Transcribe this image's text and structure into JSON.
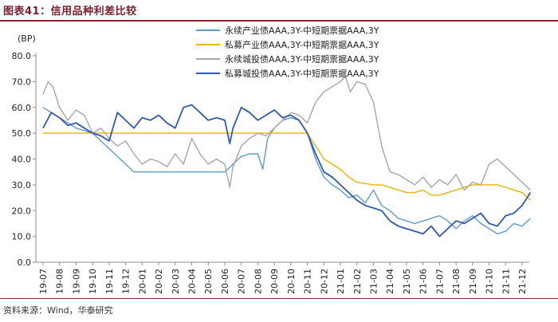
{
  "header": {
    "title": "图表41：信用品种利差比较"
  },
  "footer": {
    "source": "资料来源：Wind，华泰研究"
  },
  "chart_data": {
    "type": "line",
    "title": "信用品种利差比较",
    "ylabel": "(BP)",
    "ylim": [
      0,
      80
    ],
    "yticks": [
      "0.0",
      "10.0",
      "20.0",
      "30.0",
      "40.0",
      "50.0",
      "60.0",
      "70.0",
      "80.0"
    ],
    "grid": false,
    "legend_position": "top-right",
    "categories": [
      "19-07",
      "19-08",
      "19-09",
      "19-10",
      "19-11",
      "19-12",
      "20-01",
      "20-02",
      "20-03",
      "20-04",
      "20-05",
      "20-06",
      "20-07",
      "20-08",
      "20-09",
      "20-10",
      "20-11",
      "20-12",
      "21-01",
      "21-02",
      "21-03",
      "21-04",
      "21-05",
      "21-06",
      "21-07",
      "21-08",
      "21-09",
      "21-10",
      "21-11",
      "21-12"
    ],
    "series": [
      {
        "name": "永续产业债AAA,3Y-中短期票据AAA,3Y",
        "color": "#5b9bd5",
        "x": [
          0,
          0.5,
          1,
          1.5,
          2,
          2.5,
          3,
          3.5,
          4,
          4.5,
          5,
          5.5,
          6,
          6.5,
          7,
          7.5,
          8,
          8.5,
          9,
          9.5,
          10,
          10.5,
          11,
          11.5,
          12,
          12.5,
          13,
          13.3,
          13.6,
          14,
          14.5,
          15,
          15.5,
          16,
          16.5,
          17,
          17.5,
          18,
          18.5,
          19,
          19.5,
          20,
          20.5,
          21,
          21.5,
          22,
          22.5,
          23,
          23.5,
          24,
          24.5,
          25,
          25.5,
          26,
          26.5,
          27,
          27.5,
          28,
          28.5,
          29,
          29.5
        ],
        "values": [
          60,
          58,
          56,
          54,
          52,
          51,
          50,
          47,
          44,
          41,
          38,
          35,
          35,
          35,
          35,
          35,
          35,
          35,
          35,
          35,
          35,
          35,
          35,
          38,
          41,
          42,
          42,
          36,
          48,
          52,
          55,
          56,
          55,
          50,
          40,
          33,
          30,
          28,
          25,
          26,
          23,
          28,
          22,
          20,
          17,
          16,
          15,
          16,
          17,
          18,
          16,
          13,
          16,
          18,
          15,
          13,
          11,
          12,
          15,
          14,
          17
        ]
      },
      {
        "name": "私募产业债AAA,3Y-中短期票据AAA,3Y",
        "color": "#f0b400",
        "x": [
          0,
          3,
          6,
          9,
          12,
          15,
          16,
          16.5,
          17,
          17.5,
          18,
          18.5,
          19,
          20,
          20.5,
          21,
          21.5,
          22,
          22.5,
          23,
          23.5,
          24,
          24.5,
          25,
          25.5,
          26,
          26.5,
          27,
          27.5,
          28,
          28.5,
          29,
          29.5
        ],
        "values": [
          50,
          50,
          50,
          50,
          50,
          50,
          50,
          45,
          40,
          38,
          36,
          33,
          31,
          30,
          30,
          29,
          28,
          27,
          27,
          28,
          26,
          26,
          27,
          28,
          29,
          30,
          30,
          30,
          30,
          29,
          28,
          27,
          24
        ]
      },
      {
        "name": "永续城投债AAA,3Y-中短期票据AAA,3Y",
        "color": "#a6a6a6",
        "x": [
          0,
          0.3,
          0.6,
          1,
          1.5,
          2,
          2.5,
          3,
          3.5,
          4,
          4.5,
          5,
          5.5,
          6,
          6.5,
          7,
          7.5,
          8,
          8.5,
          9,
          9.5,
          10,
          10.5,
          11,
          11.3,
          11.5,
          12,
          12.5,
          13,
          13.5,
          14,
          14.5,
          15,
          15.5,
          16,
          16.5,
          17,
          17.5,
          18,
          18.3,
          18.6,
          19,
          19.5,
          20,
          20.5,
          21,
          21.5,
          22,
          22.5,
          23,
          23.5,
          24,
          24.5,
          25,
          25.5,
          26,
          26.5,
          27,
          27.5,
          28,
          28.5,
          29,
          29.5
        ],
        "values": [
          65,
          70,
          68,
          60,
          55,
          59,
          57,
          50,
          52,
          48,
          45,
          47,
          42,
          38,
          40,
          39,
          37,
          42,
          38,
          48,
          42,
          38,
          40,
          38,
          29,
          37,
          45,
          48,
          50,
          49,
          52,
          55,
          58,
          57,
          54,
          62,
          66,
          68,
          70,
          72,
          66,
          70,
          69,
          62,
          45,
          35,
          34,
          32,
          30,
          33,
          29,
          32,
          30,
          34,
          28,
          31,
          30,
          38,
          40,
          37,
          34,
          31,
          28
        ]
      },
      {
        "name": "私募城投债AAA,3Y-中短期票据AAA,3Y",
        "color": "#2e58b8",
        "x": [
          0,
          0.5,
          1,
          1.5,
          2,
          2.5,
          3,
          3.5,
          4,
          4.5,
          5,
          5.5,
          6,
          6.5,
          7,
          7.5,
          8,
          8.5,
          9,
          9.5,
          10,
          10.5,
          11,
          11.3,
          11.5,
          12,
          12.5,
          13,
          13.5,
          14,
          14.5,
          15,
          15.5,
          16,
          16.5,
          17,
          17.5,
          18,
          18.5,
          19,
          19.5,
          20,
          20.5,
          21,
          21.5,
          22,
          22.5,
          23,
          23.5,
          24,
          24.5,
          25,
          25.5,
          26,
          26.5,
          27,
          27.5,
          28,
          28.5,
          29,
          29.5
        ],
        "values": [
          52,
          58,
          56,
          53,
          54,
          52,
          50,
          49,
          47,
          58,
          55,
          52,
          56,
          55,
          57,
          54,
          52,
          60,
          61,
          58,
          55,
          56,
          55,
          46,
          52,
          60,
          58,
          55,
          57,
          59,
          56,
          57,
          55,
          50,
          42,
          35,
          33,
          30,
          27,
          24,
          22,
          21,
          20,
          16,
          14,
          13,
          12,
          11,
          14,
          10,
          13,
          16,
          15,
          17,
          19,
          15,
          14,
          18,
          19,
          22,
          27
        ]
      }
    ]
  }
}
